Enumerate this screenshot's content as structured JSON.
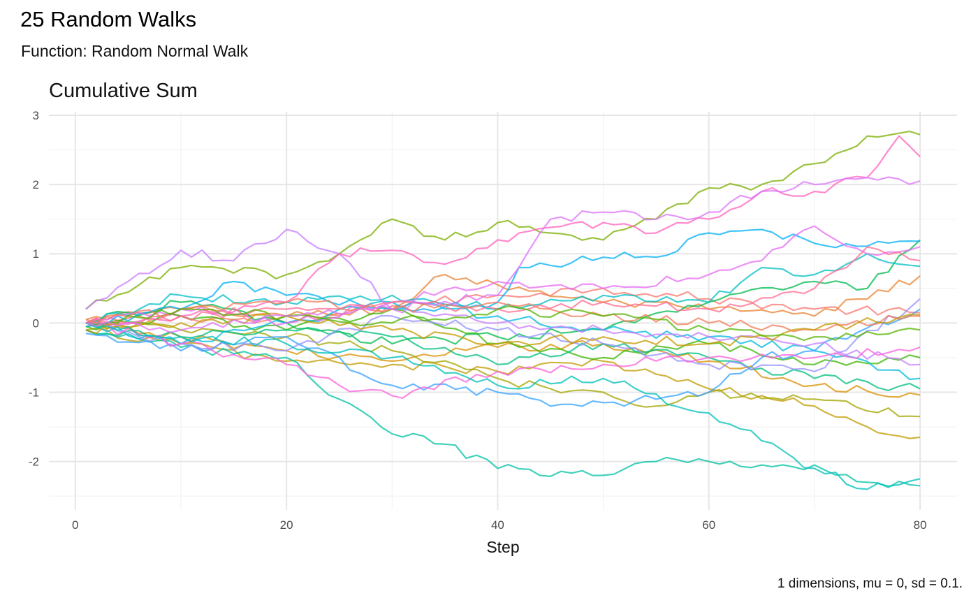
{
  "chart_data": {
    "type": "line",
    "title": "25 Random Walks",
    "subtitle": "Function: Random Normal Walk",
    "panel_title": "Cumulative Sum",
    "xlabel": "Step",
    "ylabel": "",
    "caption": "1 dimensions, mu = 0, sd = 0.1.",
    "xlim": [
      -2.5,
      83.5
    ],
    "ylim": [
      -2.7,
      3.05
    ],
    "x_ticks": [
      0,
      20,
      40,
      60,
      80
    ],
    "x_tick_labels": [
      "0",
      "20",
      "40",
      "60",
      "80"
    ],
    "y_ticks": [
      -2,
      -1,
      0,
      1,
      2,
      3
    ],
    "y_tick_labels": [
      "-2",
      "-1",
      "0",
      "1",
      "2",
      "3"
    ],
    "grid": true,
    "legend": "none",
    "steps": 80,
    "series": [
      {
        "color": "#F8766D",
        "knots": [
          [
            1,
            0.0
          ],
          [
            10,
            0.1
          ],
          [
            20,
            0.0
          ],
          [
            30,
            0.25
          ],
          [
            40,
            0.4
          ],
          [
            50,
            0.5
          ],
          [
            60,
            0.35
          ],
          [
            70,
            0.2
          ],
          [
            80,
            0.15
          ]
        ]
      },
      {
        "color": "#EA8331",
        "knots": [
          [
            1,
            0.05
          ],
          [
            10,
            0.2
          ],
          [
            20,
            0.1
          ],
          [
            30,
            0.2
          ],
          [
            35,
            0.7
          ],
          [
            40,
            0.55
          ],
          [
            50,
            0.3
          ],
          [
            60,
            0.2
          ],
          [
            70,
            0.1
          ],
          [
            80,
            0.68
          ]
        ]
      },
      {
        "color": "#D89000",
        "knots": [
          [
            1,
            -0.05
          ],
          [
            10,
            -0.2
          ],
          [
            20,
            -0.4
          ],
          [
            30,
            -0.55
          ],
          [
            40,
            -0.35
          ],
          [
            50,
            -0.3
          ],
          [
            60,
            -0.55
          ],
          [
            70,
            -0.9
          ],
          [
            80,
            -1.04
          ]
        ]
      },
      {
        "color": "#C09B00",
        "knots": [
          [
            1,
            -0.1
          ],
          [
            10,
            -0.3
          ],
          [
            20,
            -0.55
          ],
          [
            30,
            -0.6
          ],
          [
            40,
            -0.7
          ],
          [
            50,
            -0.55
          ],
          [
            60,
            -0.95
          ],
          [
            70,
            -1.2
          ],
          [
            75,
            -1.5
          ],
          [
            80,
            -1.65
          ]
        ]
      },
      {
        "color": "#A3A500",
        "knots": [
          [
            1,
            0.0
          ],
          [
            10,
            -0.1
          ],
          [
            20,
            -0.2
          ],
          [
            30,
            -0.4
          ],
          [
            40,
            -0.8
          ],
          [
            45,
            -0.95
          ],
          [
            50,
            -1.0
          ],
          [
            55,
            -1.2
          ],
          [
            60,
            -1.0
          ],
          [
            70,
            -1.1
          ],
          [
            80,
            -1.35
          ]
        ]
      },
      {
        "color": "#7CAE00",
        "knots": [
          [
            1,
            0.2
          ],
          [
            10,
            0.8
          ],
          [
            20,
            0.7
          ],
          [
            25,
            1.0
          ],
          [
            30,
            1.5
          ],
          [
            35,
            1.2
          ],
          [
            40,
            1.45
          ],
          [
            50,
            1.2
          ],
          [
            55,
            1.5
          ],
          [
            60,
            1.95
          ],
          [
            65,
            2.0
          ],
          [
            70,
            2.3
          ],
          [
            75,
            2.7
          ],
          [
            80,
            2.72
          ]
        ]
      },
      {
        "color": "#39B600",
        "knots": [
          [
            1,
            -0.05
          ],
          [
            10,
            0.1
          ],
          [
            20,
            -0.1
          ],
          [
            30,
            0.2
          ],
          [
            40,
            -0.3
          ],
          [
            50,
            -0.5
          ],
          [
            60,
            -0.3
          ],
          [
            70,
            -0.6
          ],
          [
            80,
            -0.5
          ]
        ]
      },
      {
        "color": "#00BB4E",
        "knots": [
          [
            1,
            0.0
          ],
          [
            10,
            0.3
          ],
          [
            20,
            0.0
          ],
          [
            30,
            -0.3
          ],
          [
            40,
            -0.2
          ],
          [
            50,
            -0.1
          ],
          [
            60,
            0.3
          ],
          [
            70,
            0.6
          ],
          [
            75,
            0.5
          ],
          [
            80,
            1.2
          ]
        ]
      },
      {
        "color": "#00BF7D",
        "knots": [
          [
            1,
            -0.1
          ],
          [
            10,
            -0.2
          ],
          [
            20,
            -0.1
          ],
          [
            30,
            -0.2
          ],
          [
            40,
            -0.6
          ],
          [
            50,
            -0.3
          ],
          [
            60,
            -0.5
          ],
          [
            70,
            -0.8
          ],
          [
            80,
            -0.95
          ]
        ]
      },
      {
        "color": "#00C1A3",
        "knots": [
          [
            1,
            -0.1
          ],
          [
            10,
            -0.35
          ],
          [
            20,
            -0.5
          ],
          [
            25,
            -1.1
          ],
          [
            30,
            -1.6
          ],
          [
            35,
            -1.75
          ],
          [
            40,
            -2.1
          ],
          [
            50,
            -2.2
          ],
          [
            55,
            -2.0
          ],
          [
            60,
            -2.0
          ],
          [
            65,
            -2.05
          ],
          [
            70,
            -2.05
          ],
          [
            75,
            -2.3
          ],
          [
            80,
            -2.35
          ]
        ]
      },
      {
        "color": "#00BFC4",
        "knots": [
          [
            1,
            0.0
          ],
          [
            10,
            0.4
          ],
          [
            20,
            0.3
          ],
          [
            30,
            0.4
          ],
          [
            40,
            0.2
          ],
          [
            50,
            0.4
          ],
          [
            60,
            0.3
          ],
          [
            65,
            0.8
          ],
          [
            70,
            0.7
          ],
          [
            75,
            1.0
          ],
          [
            80,
            0.82
          ]
        ]
      },
      {
        "color": "#00BAE0",
        "knots": [
          [
            1,
            0.0
          ],
          [
            10,
            -0.3
          ],
          [
            20,
            0.0
          ],
          [
            30,
            0.3
          ],
          [
            40,
            0.1
          ],
          [
            50,
            -0.1
          ],
          [
            60,
            -0.2
          ],
          [
            70,
            -0.4
          ],
          [
            80,
            -0.8
          ]
        ]
      },
      {
        "color": "#00B0F6",
        "knots": [
          [
            1,
            -0.05
          ],
          [
            10,
            0.2
          ],
          [
            15,
            0.6
          ],
          [
            20,
            0.4
          ],
          [
            30,
            0.2
          ],
          [
            40,
            0.3
          ],
          [
            42,
            0.8
          ],
          [
            50,
            0.95
          ],
          [
            55,
            0.95
          ],
          [
            60,
            1.3
          ],
          [
            65,
            1.35
          ],
          [
            70,
            1.15
          ],
          [
            80,
            1.18
          ]
        ]
      },
      {
        "color": "#35A2FF",
        "knots": [
          [
            1,
            -0.15
          ],
          [
            10,
            -0.4
          ],
          [
            20,
            -0.2
          ],
          [
            30,
            -0.9
          ],
          [
            40,
            -1.0
          ],
          [
            45,
            -1.2
          ],
          [
            50,
            -1.15
          ],
          [
            55,
            -1.1
          ],
          [
            60,
            -1.0
          ],
          [
            65,
            -0.5
          ],
          [
            70,
            -0.4
          ],
          [
            80,
            0.2
          ]
        ]
      },
      {
        "color": "#9590FF",
        "knots": [
          [
            1,
            0.0
          ],
          [
            10,
            -0.3
          ],
          [
            20,
            -0.4
          ],
          [
            30,
            0.1
          ],
          [
            40,
            -0.1
          ],
          [
            50,
            -0.3
          ],
          [
            60,
            -0.6
          ],
          [
            70,
            -0.7
          ],
          [
            80,
            0.35
          ]
        ]
      },
      {
        "color": "#C77CFF",
        "knots": [
          [
            1,
            0.2
          ],
          [
            5,
            0.6
          ],
          [
            10,
            1.05
          ],
          [
            15,
            0.9
          ],
          [
            20,
            1.35
          ],
          [
            25,
            1.0
          ],
          [
            30,
            0.2
          ],
          [
            40,
            0.0
          ],
          [
            50,
            -0.1
          ],
          [
            60,
            -0.2
          ],
          [
            70,
            -0.3
          ],
          [
            80,
            -0.6
          ]
        ]
      },
      {
        "color": "#E76BF3",
        "knots": [
          [
            1,
            0.0
          ],
          [
            10,
            0.2
          ],
          [
            20,
            0.0
          ],
          [
            30,
            0.3
          ],
          [
            40,
            0.6
          ],
          [
            50,
            0.5
          ],
          [
            60,
            0.7
          ],
          [
            65,
            0.9
          ],
          [
            70,
            1.4
          ],
          [
            75,
            1.0
          ],
          [
            80,
            1.1
          ]
        ]
      },
      {
        "color": "#FA62DB",
        "knots": [
          [
            1,
            0.0
          ],
          [
            10,
            -0.3
          ],
          [
            20,
            -0.6
          ],
          [
            25,
            -0.9
          ],
          [
            30,
            -1.05
          ],
          [
            40,
            -0.7
          ],
          [
            50,
            -0.6
          ],
          [
            60,
            -0.5
          ],
          [
            70,
            -0.5
          ],
          [
            80,
            -0.35
          ]
        ]
      },
      {
        "color": "#FF62BC",
        "knots": [
          [
            1,
            0.0
          ],
          [
            10,
            0.1
          ],
          [
            20,
            0.3
          ],
          [
            25,
            1.0
          ],
          [
            30,
            1.05
          ],
          [
            35,
            0.85
          ],
          [
            40,
            1.2
          ],
          [
            50,
            1.45
          ],
          [
            55,
            1.3
          ],
          [
            60,
            1.5
          ],
          [
            65,
            1.9
          ],
          [
            70,
            1.9
          ],
          [
            75,
            2.1
          ],
          [
            78,
            2.7
          ],
          [
            80,
            2.4
          ]
        ]
      },
      {
        "color": "#FF6C91",
        "knots": [
          [
            1,
            0.0
          ],
          [
            10,
            0.1
          ],
          [
            20,
            0.2
          ],
          [
            30,
            0.3
          ],
          [
            40,
            0.2
          ],
          [
            50,
            0.3
          ],
          [
            60,
            0.2
          ],
          [
            70,
            0.5
          ],
          [
            75,
            1.1
          ],
          [
            80,
            0.9
          ]
        ]
      },
      {
        "color": "#F37B59",
        "knots": [
          [
            1,
            0.05
          ],
          [
            10,
            0.2
          ],
          [
            20,
            0.3
          ],
          [
            30,
            0.2
          ],
          [
            40,
            0.3
          ],
          [
            50,
            0.1
          ],
          [
            60,
            0.0
          ],
          [
            70,
            -0.1
          ],
          [
            80,
            0.1
          ]
        ]
      },
      {
        "color": "#C49A00",
        "knots": [
          [
            1,
            -0.1
          ],
          [
            10,
            0.0
          ],
          [
            20,
            0.1
          ],
          [
            30,
            -0.1
          ],
          [
            40,
            -0.3
          ],
          [
            50,
            -0.2
          ],
          [
            60,
            -0.3
          ],
          [
            70,
            -0.1
          ],
          [
            80,
            0.12
          ]
        ]
      },
      {
        "color": "#53B400",
        "knots": [
          [
            1,
            0.0
          ],
          [
            10,
            0.2
          ],
          [
            20,
            0.1
          ],
          [
            30,
            0.0
          ],
          [
            40,
            0.2
          ],
          [
            50,
            0.1
          ],
          [
            60,
            -0.1
          ],
          [
            70,
            -0.2
          ],
          [
            80,
            -0.1
          ]
        ]
      },
      {
        "color": "#00C0B8",
        "knots": [
          [
            1,
            0.0
          ],
          [
            10,
            -0.2
          ],
          [
            20,
            -0.3
          ],
          [
            30,
            -0.5
          ],
          [
            40,
            -0.9
          ],
          [
            50,
            -0.8
          ],
          [
            60,
            -1.3
          ],
          [
            65,
            -1.7
          ],
          [
            70,
            -2.1
          ],
          [
            75,
            -2.4
          ],
          [
            80,
            -2.25
          ]
        ]
      },
      {
        "color": "#DE71F9",
        "knots": [
          [
            1,
            0.0
          ],
          [
            10,
            -0.1
          ],
          [
            20,
            0.1
          ],
          [
            30,
            0.2
          ],
          [
            40,
            0.4
          ],
          [
            45,
            1.5
          ],
          [
            50,
            1.6
          ],
          [
            55,
            1.5
          ],
          [
            60,
            1.6
          ],
          [
            65,
            1.9
          ],
          [
            70,
            2.0
          ],
          [
            75,
            2.1
          ],
          [
            80,
            2.05
          ]
        ]
      }
    ]
  }
}
